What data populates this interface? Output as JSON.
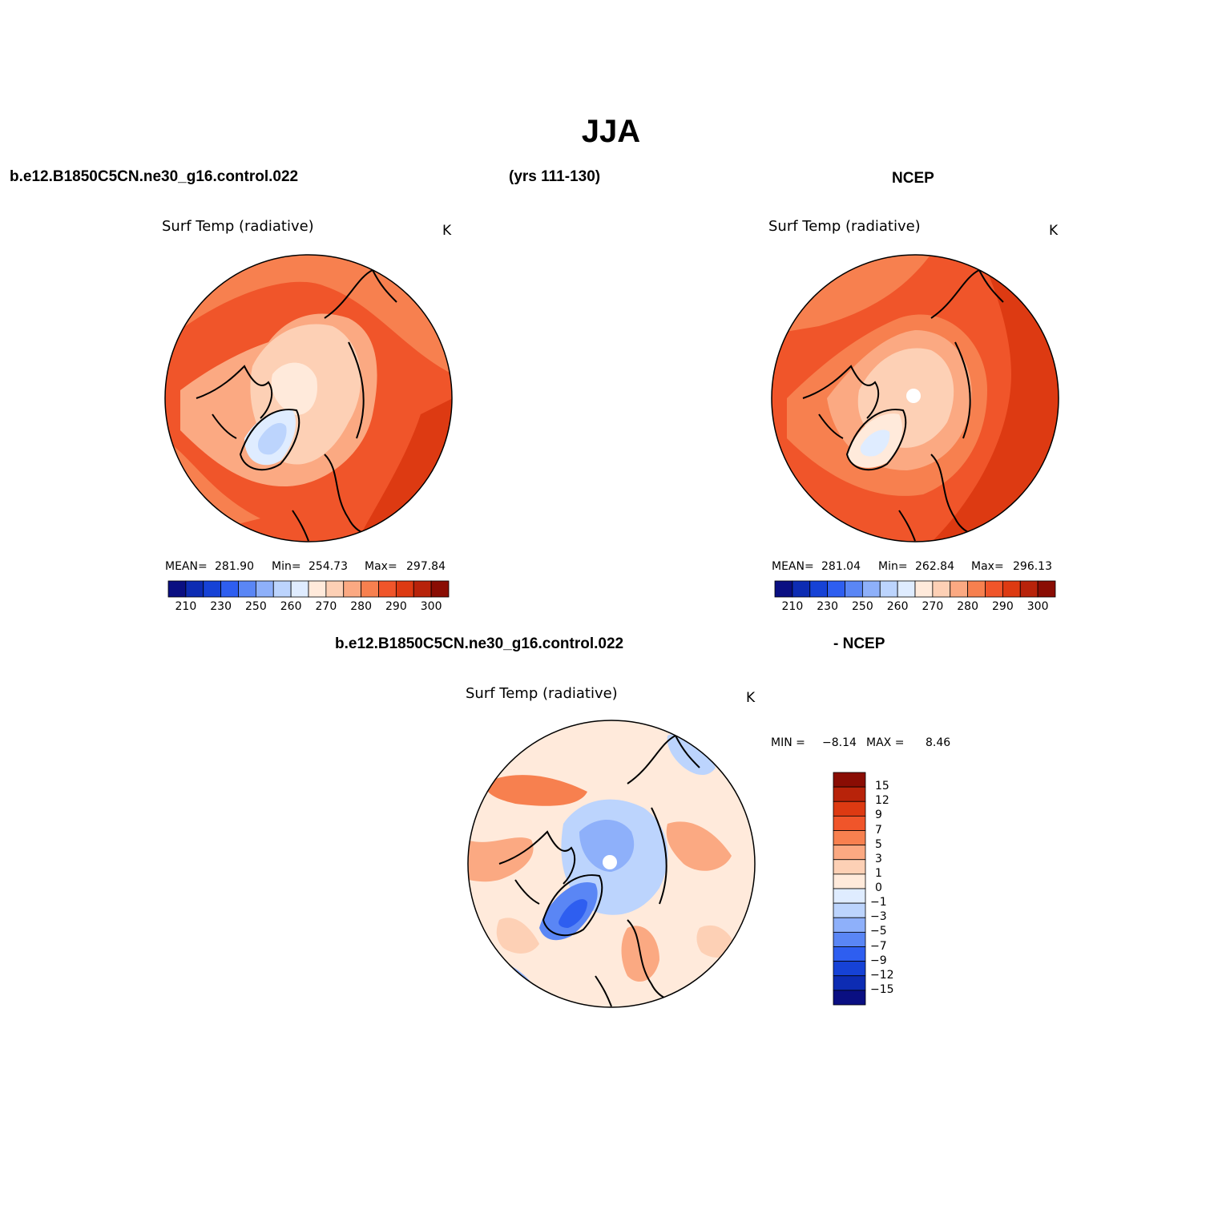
{
  "figure": {
    "title": "JJA",
    "case_name": "b.e12.B1850C5CN.ne30_g16.control.022",
    "years": "(yrs 111-130)",
    "obs_name": "NCEP",
    "diff_case_name": "b.e12.B1850C5CN.ne30_g16.control.022",
    "diff_obs_name": "- NCEP"
  },
  "panels": {
    "model": {
      "variable": "Surf Temp (radiative)",
      "units": "K",
      "stats": {
        "mean_label": "MEAN=",
        "mean": "281.90",
        "min_label": "Min=",
        "min": "254.73",
        "max_label": "Max=",
        "max": "297.84"
      }
    },
    "obs": {
      "variable": "Surf Temp (radiative)",
      "units": "K",
      "stats": {
        "mean_label": "MEAN=",
        "mean": "281.04",
        "min_label": "Min=",
        "min": "262.84",
        "max_label": "Max=",
        "max": "296.13"
      }
    },
    "diff": {
      "variable": "Surf Temp (radiative)",
      "units": "K",
      "stats": {
        "min_label": "MIN =",
        "min": "−8.14",
        "max_label": "MAX =",
        "max": "8.46"
      }
    }
  },
  "colorbars": {
    "absolute": {
      "colors": [
        "#0a0f82",
        "#0d2cb3",
        "#1642d6",
        "#2e5ef0",
        "#5a86f5",
        "#8eb0fa",
        "#bcd4fd",
        "#dfecff",
        "#ffeadb",
        "#fdd0b5",
        "#fba982",
        "#f7804f",
        "#f0552a",
        "#dd3a12",
        "#b8230a",
        "#8a0d04"
      ],
      "tick_labels": [
        "210",
        "230",
        "250",
        "260",
        "270",
        "280",
        "290",
        "300"
      ]
    },
    "difference": {
      "colors_top_to_bottom": [
        "#8a0d04",
        "#b8230a",
        "#dd3a12",
        "#f0552a",
        "#f7804f",
        "#fba982",
        "#fdd0b5",
        "#ffeadb",
        "#dfecff",
        "#bcd4fd",
        "#8eb0fa",
        "#5a86f5",
        "#2e5ef0",
        "#1642d6",
        "#0d2cb3",
        "#0a0f82"
      ],
      "tick_labels": [
        "15",
        "12",
        "9",
        "7",
        "5",
        "3",
        "1",
        "0",
        "−1",
        "−3",
        "−5",
        "−7",
        "−9",
        "−12",
        "−15"
      ]
    }
  },
  "map_colors": {
    "warm_dark": "#dd3a12",
    "warm_mid": "#f0552a",
    "warm_light": "#f7804f",
    "salmon": "#fba982",
    "peach": "#fdd0b5",
    "cream": "#ffeadb",
    "cool_pale": "#dfecff",
    "cool_light": "#bcd4fd",
    "cool_mid": "#8eb0fa",
    "cool_strong": "#5a86f5",
    "cool_deep": "#2e5ef0"
  }
}
